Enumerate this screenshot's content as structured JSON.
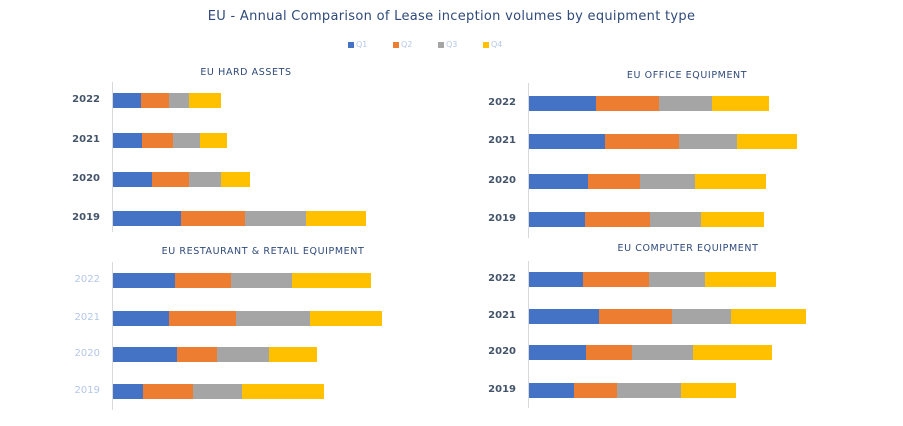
{
  "chart_data": [
    {
      "type": "bar",
      "stacked": true,
      "orientation": "horizontal",
      "title": "EU HARD ASSETS",
      "categories": [
        "2022",
        "2021",
        "2020",
        "2019"
      ],
      "series": [
        {
          "name": "Q1",
          "values": [
            28,
            29,
            39,
            68
          ]
        },
        {
          "name": "Q2",
          "values": [
            28,
            31,
            37,
            64
          ]
        },
        {
          "name": "Q3",
          "values": [
            20,
            27,
            32,
            61
          ]
        },
        {
          "name": "Q4",
          "values": [
            32,
            27,
            29,
            60
          ]
        }
      ]
    },
    {
      "type": "bar",
      "stacked": true,
      "orientation": "horizontal",
      "title": "EU OFFICE EQUIPMENT",
      "categories": [
        "2022",
        "2021",
        "2020",
        "2019"
      ],
      "series": [
        {
          "name": "Q1",
          "values": [
            67,
            76,
            59,
            56
          ]
        },
        {
          "name": "Q2",
          "values": [
            63,
            74,
            52,
            65
          ]
        },
        {
          "name": "Q3",
          "values": [
            53,
            58,
            55,
            51
          ]
        },
        {
          "name": "Q4",
          "values": [
            57,
            60,
            71,
            63
          ]
        }
      ]
    },
    {
      "type": "bar",
      "stacked": true,
      "orientation": "horizontal",
      "title": "EU RESTAURANT & RETAIL EQUIPMENT",
      "categories": [
        "2022",
        "2021",
        "2020",
        "2019"
      ],
      "series": [
        {
          "name": "Q1",
          "values": [
            62,
            56,
            64,
            30
          ]
        },
        {
          "name": "Q2",
          "values": [
            56,
            67,
            40,
            50
          ]
        },
        {
          "name": "Q3",
          "values": [
            61,
            74,
            52,
            49
          ]
        },
        {
          "name": "Q4",
          "values": [
            79,
            72,
            48,
            82
          ]
        }
      ]
    },
    {
      "type": "bar",
      "stacked": true,
      "orientation": "horizontal",
      "title": "EU COMPUTER EQUIPMENT",
      "categories": [
        "2022",
        "2021",
        "2020",
        "2019"
      ],
      "series": [
        {
          "name": "Q1",
          "values": [
            54,
            70,
            57,
            45
          ]
        },
        {
          "name": "Q2",
          "values": [
            66,
            73,
            46,
            43
          ]
        },
        {
          "name": "Q3",
          "values": [
            56,
            59,
            61,
            64
          ]
        },
        {
          "name": "Q4",
          "values": [
            71,
            75,
            79,
            55
          ]
        }
      ]
    }
  ],
  "title": "EU - Annual Comparison of Lease inception volumes by equipment type",
  "legend": {
    "placement": "top",
    "items": [
      "Q1",
      "Q2",
      "Q3",
      "Q4"
    ]
  },
  "colors": {
    "Q1": "#4472c4",
    "Q2": "#ed7d31",
    "Q3": "#a5a5a5",
    "Q4": "#ffc000"
  },
  "grid": false
}
